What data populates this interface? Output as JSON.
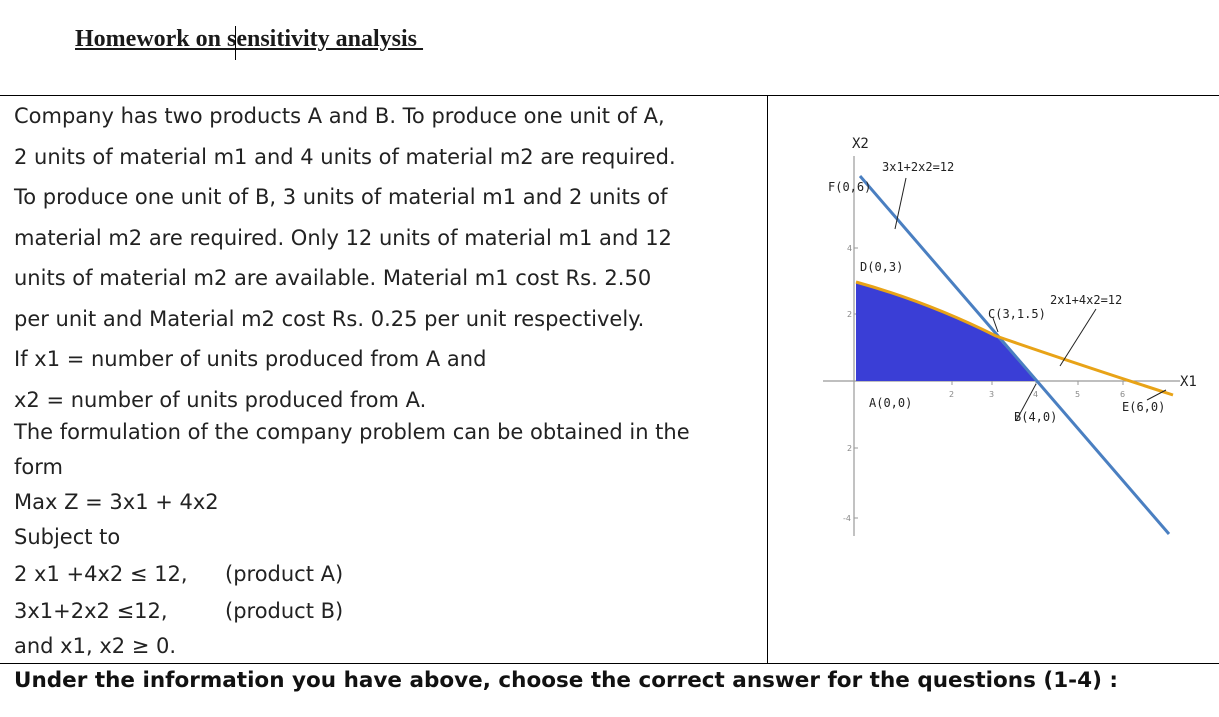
{
  "document": {
    "title": "Homework on sensitivity analysis ",
    "paragraph_lines": [
      "Company has two products A and B. To produce one unit of A,",
      "2 units of material m1 and 4 units of material m2 are required.",
      "To produce one unit of B, 3 units of material m1 and 2 units of",
      "material m2 are required. Only 12 units of material m1 and 12",
      "units of material m2 are available. Material m1 cost Rs. 2.50",
      "per unit and Material m2 cost Rs. 0.25 per unit respectively.",
      "If x1 = number of units produced from A and",
      "x2 = number of units produced from A."
    ],
    "formulation_intro_1": "The formulation of the company problem can be obtained in the",
    "formulation_intro_2": "form",
    "objective": "Max Z = 3x1 + 4x2",
    "subject_to": "Subject to",
    "constraint_1": "2 x1 +4x2 ≤ 12,",
    "constraint_1_note": "(product A)",
    "constraint_2": "3x1+2x2 ≤12,",
    "constraint_2_note": "(product B)",
    "nonnegativity": "and x1, x2 ≥ 0.",
    "footer": "Under the information you have above, choose the correct answer for the questions (1-4) :"
  },
  "graph": {
    "y_axis_label": "X2",
    "x_axis_label": "X1",
    "line_1_label": "3x1+2x2=12",
    "line_2_label": "2x1+4x2=12",
    "points": {
      "F": "F(0,6)",
      "D": "D(0,3)",
      "C": "C(3,1.5)",
      "A": "A(0,0)",
      "B": "B(4,0)",
      "E": "E(6,0)"
    },
    "x_ticks": [
      "2",
      "3",
      "4",
      "5",
      "6"
    ],
    "y_ticks": [
      "4",
      "2",
      "2",
      "-4"
    ],
    "colors": {
      "feasible_region": "#3a3ed6",
      "line_3x1_2x2": "#4a7fc1",
      "line_2x1_4x2": "#e8a317"
    }
  }
}
